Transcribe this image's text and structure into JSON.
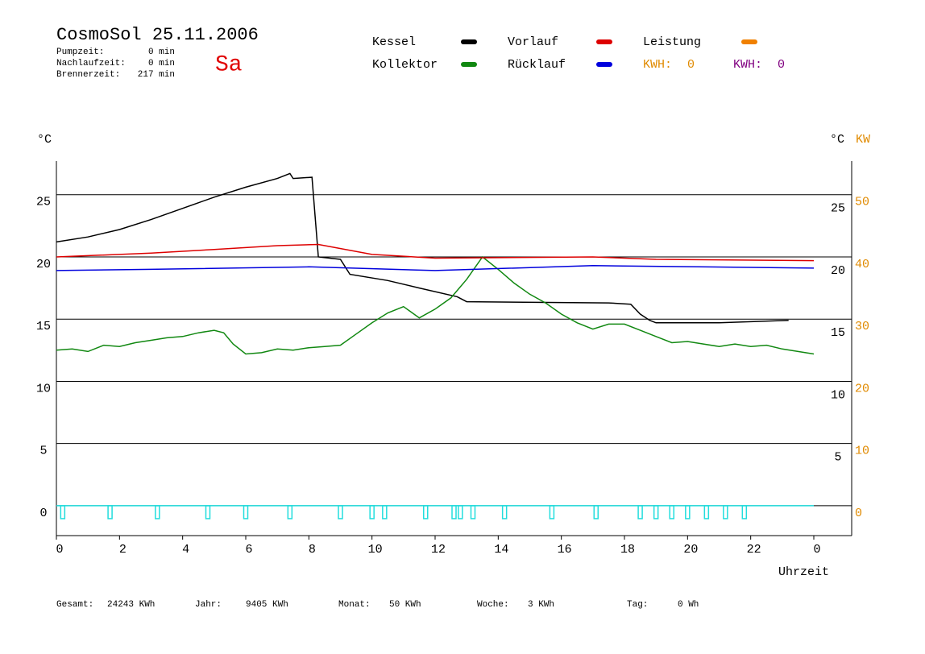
{
  "chart_data": {
    "type": "line",
    "title": "CosmoSol 25.11.2006",
    "weekday": "Sa",
    "weekday_color": "#e00000",
    "info": [
      {
        "label": "Pumpzeit:",
        "value": "0 min"
      },
      {
        "label": "Nachlaufzeit:",
        "value": "0 min"
      },
      {
        "label": "Brennerzeit:",
        "value": "217 min"
      }
    ],
    "xlabel": "Uhrzeit",
    "ylabel": "°C",
    "y_right_label": "°C",
    "y2label": "KW",
    "xlim": [
      0,
      24
    ],
    "xticks": [
      0,
      2,
      4,
      6,
      8,
      10,
      12,
      14,
      16,
      18,
      20,
      22,
      {
        "value": 24,
        "label": "0"
      }
    ],
    "ylim": [
      -2.4,
      27.7
    ],
    "yticks": [
      0,
      5,
      10,
      15,
      20,
      25
    ],
    "y_right_ticks": [
      5,
      10,
      15,
      20,
      25
    ],
    "y2lim": [
      -4.8,
      55.4
    ],
    "y2ticks": [
      0,
      10,
      20,
      30,
      40,
      50
    ],
    "y2_color": "#e08a00",
    "grid": true,
    "series": [
      {
        "name": "Kessel",
        "color": "#000000",
        "x": [
          0,
          1,
          2,
          3,
          4,
          5,
          6,
          7,
          7.4,
          7.5,
          8.1,
          8.3,
          9.0,
          9.3,
          10.5,
          11.5,
          12.7,
          13.0,
          17.5,
          18.2,
          18.5,
          18.8,
          19.0,
          21.0,
          23.2
        ],
        "values": [
          21.2,
          21.6,
          22.2,
          23.0,
          23.9,
          24.8,
          25.6,
          26.3,
          26.7,
          26.3,
          26.4,
          20.0,
          19.8,
          18.6,
          18.1,
          17.5,
          16.8,
          16.4,
          16.3,
          16.2,
          15.4,
          14.9,
          14.7,
          14.7,
          14.9
        ]
      },
      {
        "name": "Kollektor",
        "color": "#118811",
        "x": [
          0,
          0.5,
          1,
          1.5,
          2,
          2.5,
          3,
          3.5,
          4,
          4.5,
          5,
          5.3,
          5.6,
          6,
          6.5,
          7,
          7.5,
          8,
          8.5,
          9,
          9.5,
          10,
          10.5,
          11,
          11.5,
          12,
          12.5,
          13,
          13.5,
          14,
          14.5,
          15,
          15.5,
          16,
          16.5,
          17,
          17.5,
          18,
          18.5,
          19,
          19.5,
          20,
          20.5,
          21,
          21.5,
          22,
          22.5,
          23,
          23.5,
          24
        ],
        "values": [
          12.5,
          12.6,
          12.4,
          12.9,
          12.8,
          13.1,
          13.3,
          13.5,
          13.6,
          13.9,
          14.1,
          13.9,
          13.0,
          12.2,
          12.3,
          12.6,
          12.5,
          12.7,
          12.8,
          12.9,
          13.8,
          14.7,
          15.5,
          16.0,
          15.1,
          15.8,
          16.7,
          18.2,
          20.0,
          19.0,
          17.9,
          17.0,
          16.3,
          15.4,
          14.7,
          14.2,
          14.6,
          14.6,
          14.1,
          13.6,
          13.1,
          13.2,
          13.0,
          12.8,
          13.0,
          12.8,
          12.9,
          12.6,
          12.4,
          12.2
        ]
      },
      {
        "name": "Vorlauf",
        "color": "#dd0000",
        "x": [
          0,
          3,
          5,
          7,
          8.3,
          10,
          12,
          17,
          19,
          24
        ],
        "values": [
          20.0,
          20.3,
          20.6,
          20.9,
          21.0,
          20.2,
          19.9,
          20.0,
          19.8,
          19.7
        ]
      },
      {
        "name": "Rücklauf",
        "color": "#0000dd",
        "x": [
          0,
          3,
          8,
          12,
          17,
          24
        ],
        "values": [
          18.9,
          19.0,
          19.2,
          18.9,
          19.3,
          19.1
        ]
      },
      {
        "name": "Leistung",
        "color": "#f08000",
        "x": [],
        "values": []
      }
    ],
    "kwh": [
      {
        "label": "KWH:",
        "value": 0,
        "color": "#e08a00"
      },
      {
        "label": "KWH:",
        "value": 0,
        "color": "#800080"
      }
    ],
    "pump_color": "#22dddd",
    "pump_on": [
      0.2,
      1.7,
      3.2,
      4.8,
      6.0,
      7.4,
      9.0,
      10.0,
      10.4,
      11.7,
      12.6,
      12.8,
      13.2,
      14.2,
      15.7,
      17.1,
      18.5,
      19.0,
      19.5,
      20.0,
      20.6,
      21.2,
      21.8
    ],
    "totals": [
      {
        "label": "Gesamt:",
        "value": "24243 KWh"
      },
      {
        "label": "Jahr:",
        "value": "9405 KWh"
      },
      {
        "label": "Monat:",
        "value": "50 KWh"
      },
      {
        "label": "Woche:",
        "value": "3 KWh"
      },
      {
        "label": "Tag:",
        "value": "0 Wh"
      }
    ]
  }
}
